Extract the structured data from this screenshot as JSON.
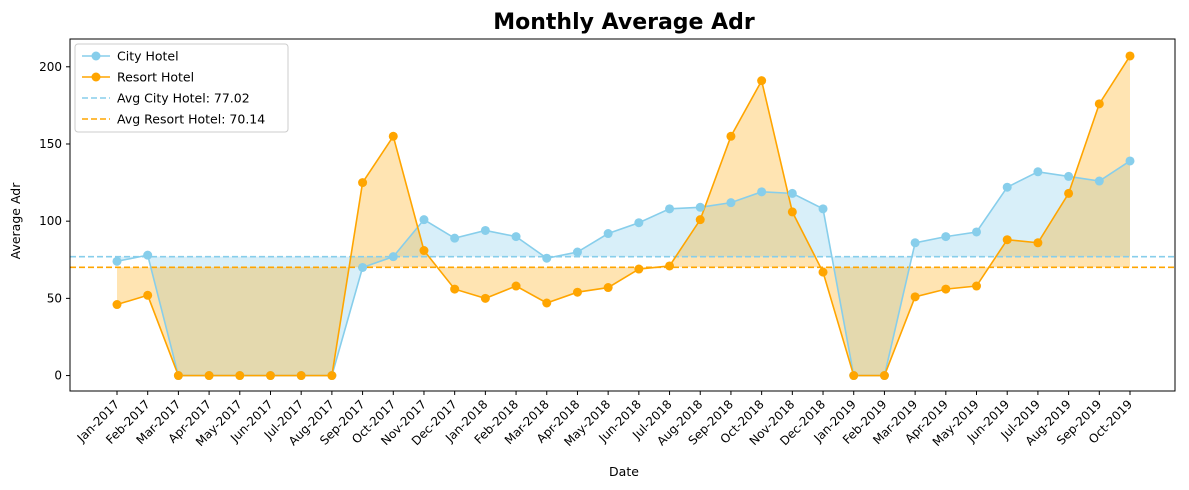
{
  "chart_data": {
    "type": "line",
    "title": "Monthly Average Adr",
    "xlabel": "Date",
    "ylabel": "Average Adr",
    "ylim": [
      -10,
      218
    ],
    "yticks": [
      0,
      50,
      100,
      150,
      200
    ],
    "grid": false,
    "legend_position": "top-left",
    "categories": [
      "Jan-2017",
      "Feb-2017",
      "Mar-2017",
      "Apr-2017",
      "May-2017",
      "Jun-2017",
      "Jul-2017",
      "Aug-2017",
      "Sep-2017",
      "Oct-2017",
      "Nov-2017",
      "Dec-2017",
      "Jan-2018",
      "Feb-2018",
      "Mar-2018",
      "Apr-2018",
      "May-2018",
      "Jun-2018",
      "Jul-2018",
      "Aug-2018",
      "Sep-2018",
      "Oct-2018",
      "Nov-2018",
      "Dec-2018",
      "Jan-2019",
      "Feb-2019",
      "Mar-2019",
      "Apr-2019",
      "May-2019",
      "Jun-2019",
      "Jul-2019",
      "Aug-2019",
      "Sep-2019",
      "Oct-2019"
    ],
    "series": [
      {
        "name": "City Hotel",
        "color": "#87ceeb",
        "values": [
          74,
          78,
          0,
          0,
          0,
          0,
          0,
          0,
          70,
          77,
          101,
          89,
          94,
          90,
          76,
          80,
          92,
          99,
          108,
          109,
          112,
          119,
          118,
          108,
          0,
          0,
          86,
          90,
          93,
          122,
          132,
          129,
          126,
          139
        ]
      },
      {
        "name": "Resort Hotel",
        "color": "#ffa500",
        "values": [
          46,
          52,
          0,
          0,
          0,
          0,
          0,
          0,
          125,
          155,
          81,
          56,
          50,
          58,
          47,
          54,
          57,
          69,
          71,
          101,
          155,
          191,
          106,
          67,
          0,
          0,
          51,
          56,
          58,
          88,
          86,
          118,
          176,
          207
        ]
      }
    ],
    "reference_lines": [
      {
        "label": "Avg City Hotel: 77.02",
        "value": 77.02,
        "color": "#87ceeb",
        "style": "dashed"
      },
      {
        "label": "Avg Resort Hotel: 70.14",
        "value": 70.14,
        "color": "#ffa500",
        "style": "dashed"
      }
    ]
  }
}
